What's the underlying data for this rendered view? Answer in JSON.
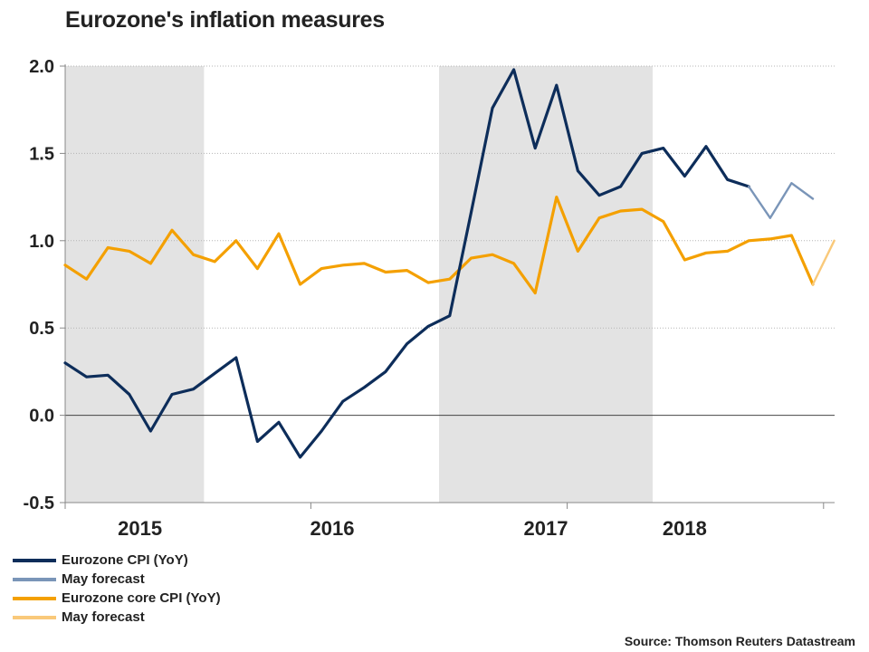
{
  "chart_data": {
    "type": "line",
    "title": "Eurozone's inflation measures",
    "xlabel": "",
    "ylabel": "",
    "ylim": [
      -0.5,
      2.0
    ],
    "yticks": [
      "-0.5",
      "0.0",
      "0.5",
      "1.0",
      "1.5",
      "2.0"
    ],
    "x_start": "Jan 2015",
    "x_end": "May 2018",
    "year_labels": [
      {
        "label": "2015",
        "center_month": 3.5
      },
      {
        "label": "2016",
        "center_month": 12.5
      },
      {
        "label": "2017",
        "center_month": 22.5
      },
      {
        "label": "2018",
        "center_month": 29
      }
    ],
    "shaded_periods": [
      [
        -0.5,
        6.5
      ],
      [
        17.5,
        27.5
      ]
    ],
    "grid": "horizontal dotted",
    "legend_position": "bottom-left",
    "series": [
      {
        "name": "Eurozone CPI (YoY)",
        "color": "#0d2d5a",
        "months": [
          0,
          1,
          2,
          3,
          4,
          5,
          6,
          7,
          8,
          9,
          10,
          11,
          12,
          13,
          14,
          15,
          16,
          17,
          18,
          19,
          20,
          21,
          22,
          23,
          24,
          25,
          26,
          27,
          28,
          29,
          30,
          31,
          32
        ],
        "values": [
          0.3,
          0.22,
          0.23,
          0.12,
          -0.09,
          0.12,
          0.15,
          0.24,
          0.33,
          -0.15,
          -0.04,
          -0.24,
          -0.09,
          0.08,
          0.16,
          0.25,
          0.41,
          0.51,
          0.57,
          1.16,
          1.76,
          1.98,
          1.53,
          1.89,
          1.4,
          1.26,
          1.31,
          1.5,
          1.53,
          1.37,
          1.54,
          1.35,
          1.31
        ]
      },
      {
        "name": "May forecast",
        "color": "#7a95b8",
        "months": [
          32,
          33,
          34,
          35
        ],
        "values": [
          1.31,
          1.13,
          1.33,
          1.24
        ]
      },
      {
        "name": "Eurozone core CPI (YoY)",
        "color": "#f4a000",
        "months": [
          0,
          1,
          2,
          3,
          4,
          5,
          6,
          7,
          8,
          9,
          10,
          11,
          12,
          13,
          14,
          15,
          16,
          17,
          18,
          19,
          20,
          21,
          22,
          23,
          24,
          25,
          26,
          27,
          28,
          29,
          30,
          31,
          32,
          33,
          34,
          35
        ],
        "values": [
          0.86,
          0.78,
          0.96,
          0.94,
          0.87,
          1.06,
          0.92,
          0.88,
          1.0,
          0.84,
          1.04,
          0.75,
          0.84,
          0.86,
          0.87,
          0.82,
          0.83,
          0.76,
          0.78,
          0.9,
          0.92,
          0.87,
          0.7,
          1.25,
          0.94,
          1.13,
          1.17,
          1.18,
          1.11,
          0.89,
          0.93,
          0.94,
          1.0,
          1.01,
          1.03,
          0.75
        ]
      },
      {
        "name": "May forecast",
        "color": "#f9c97a",
        "months": [
          35,
          36
        ],
        "values": [
          0.75,
          1.0
        ]
      }
    ]
  },
  "source": "Source: Thomson Reuters Datastream"
}
